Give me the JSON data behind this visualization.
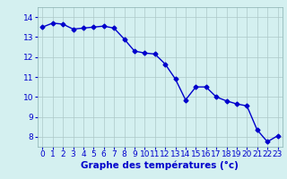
{
  "hours": [
    0,
    1,
    2,
    3,
    4,
    5,
    6,
    7,
    8,
    9,
    10,
    11,
    12,
    13,
    14,
    15,
    16,
    17,
    18,
    19,
    20,
    21,
    22,
    23
  ],
  "temperatures": [
    13.5,
    13.7,
    13.65,
    13.4,
    13.45,
    13.5,
    13.55,
    13.45,
    12.9,
    12.3,
    12.2,
    12.15,
    11.65,
    10.9,
    9.85,
    10.5,
    10.5,
    10.0,
    9.8,
    9.65,
    9.55,
    8.35,
    7.75,
    8.05
  ],
  "line_color": "#0000cc",
  "marker": "D",
  "marker_size": 2.5,
  "line_width": 1.0,
  "background_color": "#d4f0f0",
  "grid_color": "#adc8c8",
  "ylabel_ticks": [
    8,
    9,
    10,
    11,
    12,
    13,
    14
  ],
  "xlabel": "Graphe des températures (°c)",
  "xlim": [
    -0.5,
    23.5
  ],
  "ylim": [
    7.5,
    14.5
  ],
  "xlabel_fontsize": 7.5,
  "tick_fontsize": 6.5,
  "tick_color": "#0000cc",
  "xlabel_color": "#0000cc",
  "xlabel_fontweight": "bold"
}
